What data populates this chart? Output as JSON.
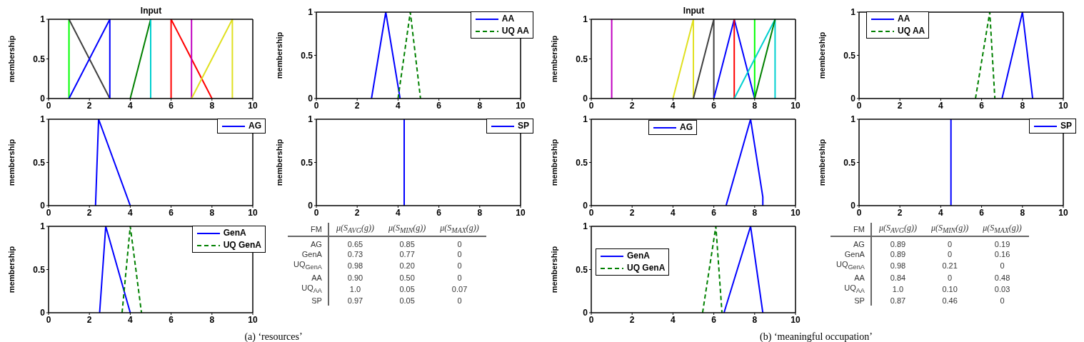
{
  "chart_data": [
    {
      "type": "line",
      "title": "Input",
      "ylabel": "membership",
      "xlim": [
        0,
        10
      ],
      "xticks": [
        0,
        2,
        4,
        6,
        8,
        10
      ],
      "ylim": [
        0,
        1
      ],
      "yticks": [
        0,
        0.5,
        1
      ],
      "line_style": "solid",
      "series": [
        {
          "color": "#00ff00",
          "x": [
            1,
            1
          ],
          "values": [
            0,
            1
          ]
        },
        {
          "color": "#404040",
          "x": [
            1,
            3
          ],
          "values": [
            1,
            0
          ]
        },
        {
          "color": "#0000ff",
          "x": [
            1,
            3,
            3
          ],
          "values": [
            0,
            1,
            0
          ]
        },
        {
          "color": "#008000",
          "x": [
            4,
            5
          ],
          "values": [
            0,
            1
          ]
        },
        {
          "color": "#00d0d0",
          "x": [
            5,
            5
          ],
          "values": [
            0,
            1
          ]
        },
        {
          "color": "#ff0000",
          "x": [
            6,
            6,
            8
          ],
          "values": [
            0,
            1,
            0
          ]
        },
        {
          "color": "#c000c0",
          "x": [
            7,
            7
          ],
          "values": [
            0,
            1
          ]
        },
        {
          "color": "#e0e020",
          "x": [
            7,
            9,
            9
          ],
          "values": [
            0,
            1,
            0
          ]
        }
      ]
    },
    {
      "type": "line",
      "ylabel": "membership",
      "xlim": [
        0,
        10
      ],
      "xticks": [
        0,
        2,
        4,
        6,
        8,
        10
      ],
      "ylim": [
        0,
        1
      ],
      "yticks": [
        0,
        0.5,
        1
      ],
      "legend": "top right",
      "line_style": "solid",
      "series": [
        {
          "name": "AA",
          "color": "#0000ff",
          "x": [
            2.7,
            3.4,
            4.1
          ],
          "values": [
            0,
            1,
            0
          ]
        },
        {
          "name": "UQ AA",
          "color": "#008000",
          "line_style": "dashed",
          "x": [
            4.0,
            4.6,
            5.1
          ],
          "values": [
            0,
            1,
            0
          ]
        }
      ]
    },
    {
      "type": "line",
      "ylabel": "membership",
      "xlim": [
        0,
        10
      ],
      "xticks": [
        0,
        2,
        4,
        6,
        8,
        10
      ],
      "ylim": [
        0,
        1
      ],
      "yticks": [
        0,
        0.5,
        1
      ],
      "legend": "top right",
      "line_style": "solid",
      "series": [
        {
          "name": "AG",
          "color": "#0000ff",
          "x": [
            2.3,
            2.45,
            4.0
          ],
          "values": [
            0,
            1,
            0
          ]
        }
      ]
    },
    {
      "type": "line",
      "ylabel": "membership",
      "xlim": [
        0,
        10
      ],
      "xticks": [
        0,
        2,
        4,
        6,
        8,
        10
      ],
      "ylim": [
        0,
        1
      ],
      "yticks": [
        0,
        0.5,
        1
      ],
      "legend": "top right",
      "line_style": "solid",
      "series": [
        {
          "name": "SP",
          "color": "#0000ff",
          "x": [
            4.3,
            4.3
          ],
          "values": [
            0,
            1
          ]
        }
      ]
    },
    {
      "type": "line",
      "ylabel": "membership",
      "xlim": [
        0,
        10
      ],
      "xticks": [
        0,
        2,
        4,
        6,
        8,
        10
      ],
      "ylim": [
        0,
        1
      ],
      "yticks": [
        0,
        0.5,
        1
      ],
      "legend": "top right",
      "line_style": "solid",
      "series": [
        {
          "name": "GenA",
          "color": "#0000ff",
          "x": [
            2.5,
            2.8,
            4.0
          ],
          "values": [
            0,
            1,
            0
          ]
        },
        {
          "name": "UQ GenA",
          "color": "#008000",
          "line_style": "dashed",
          "x": [
            3.6,
            4.0,
            4.55
          ],
          "values": [
            0,
            1,
            0
          ]
        }
      ]
    },
    {
      "type": "other",
      "annotations": [
        "FM",
        "μ(S$_{AVG}$(g))",
        "μ(S$_{MIN}$(g))",
        "μ(S$_{MAX}$(g))",
        "AG",
        "0.65",
        "0.85",
        "0",
        "GenA",
        "0.73",
        "0.77",
        "0",
        "UQ$_{GenA}$",
        "0.98",
        "0.20",
        "0",
        "AA",
        "0.90",
        "0.50",
        "0",
        "UQ$_{AA}$",
        "1.0",
        "0.05",
        "0.07",
        "SP",
        "0.97",
        "0.05",
        "0",
        "(a) ‘resources’"
      ]
    },
    {
      "type": "line",
      "title": "Input",
      "ylabel": "membership",
      "xlim": [
        0,
        10
      ],
      "xticks": [
        0,
        2,
        4,
        6,
        8,
        10
      ],
      "ylim": [
        0,
        1
      ],
      "yticks": [
        0,
        0.5,
        1
      ],
      "line_style": "solid",
      "series": [
        {
          "color": "#c000c0",
          "x": [
            1,
            1
          ],
          "values": [
            0,
            1
          ]
        },
        {
          "color": "#e0e020",
          "x": [
            4,
            5,
            5
          ],
          "values": [
            0,
            1,
            0
          ]
        },
        {
          "color": "#404040",
          "x": [
            5,
            6,
            6
          ],
          "values": [
            0,
            1,
            0
          ]
        },
        {
          "color": "#0000ff",
          "x": [
            6,
            7,
            8
          ],
          "values": [
            0,
            1,
            0
          ]
        },
        {
          "color": "#ff0000",
          "x": [
            7,
            7
          ],
          "values": [
            0,
            1
          ]
        },
        {
          "color": "#00ff00",
          "x": [
            8,
            8
          ],
          "values": [
            0,
            1
          ]
        },
        {
          "color": "#00d0d0",
          "x": [
            7,
            9,
            9
          ],
          "values": [
            0,
            1,
            0
          ]
        },
        {
          "color": "#008000",
          "x": [
            8,
            9
          ],
          "values": [
            0,
            1
          ]
        }
      ]
    },
    {
      "type": "line",
      "ylabel": "membership",
      "xlim": [
        0,
        10
      ],
      "xticks": [
        0,
        2,
        4,
        6,
        8,
        10
      ],
      "ylim": [
        0,
        1
      ],
      "yticks": [
        0,
        0.5,
        1
      ],
      "legend": "top left",
      "line_style": "solid",
      "series": [
        {
          "name": "AA",
          "color": "#0000ff",
          "x": [
            7.0,
            8.0,
            8.5
          ],
          "values": [
            0,
            1,
            0
          ]
        },
        {
          "name": "UQ AA",
          "color": "#008000",
          "line_style": "dashed",
          "x": [
            5.7,
            6.4,
            6.65
          ],
          "values": [
            0,
            1,
            0
          ]
        }
      ]
    },
    {
      "type": "line",
      "ylabel": "membership",
      "xlim": [
        0,
        10
      ],
      "xticks": [
        0,
        2,
        4,
        6,
        8,
        10
      ],
      "ylim": [
        0,
        1
      ],
      "yticks": [
        0,
        0.5,
        1
      ],
      "legend": "top",
      "line_style": "solid",
      "series": [
        {
          "name": "AG",
          "color": "#0000ff",
          "x": [
            6.6,
            7.8,
            8.4,
            8.4
          ],
          "values": [
            0,
            1,
            0.1,
            0
          ]
        }
      ]
    },
    {
      "type": "line",
      "ylabel": "membership",
      "xlim": [
        0,
        10
      ],
      "xticks": [
        0,
        2,
        4,
        6,
        8,
        10
      ],
      "ylim": [
        0,
        1
      ],
      "yticks": [
        0,
        0.5,
        1
      ],
      "legend": "top right",
      "line_style": "solid",
      "series": [
        {
          "name": "SP",
          "color": "#0000ff",
          "x": [
            4.5,
            4.5
          ],
          "values": [
            0,
            1
          ]
        }
      ]
    },
    {
      "type": "line",
      "ylabel": "membership",
      "xlim": [
        0,
        10
      ],
      "xticks": [
        0,
        2,
        4,
        6,
        8,
        10
      ],
      "ylim": [
        0,
        1
      ],
      "yticks": [
        0,
        0.5,
        1
      ],
      "legend": "left",
      "line_style": "solid",
      "series": [
        {
          "name": "GenA",
          "color": "#0000ff",
          "x": [
            6.5,
            7.8,
            8.4
          ],
          "values": [
            0,
            1,
            0
          ]
        },
        {
          "name": "UQ GenA",
          "color": "#008000",
          "line_style": "dashed",
          "x": [
            5.45,
            6.1,
            6.4
          ],
          "values": [
            0,
            1,
            0
          ]
        }
      ]
    },
    {
      "type": "other",
      "annotations": [
        "FM",
        "μ(S$_{AVG}$(g))",
        "μ(S$_{MIN}$(g))",
        "μ(S$_{MAX}$(g))",
        "AG",
        "0.89",
        "0",
        "0.19",
        "GenA",
        "0.89",
        "0",
        "0.16",
        "UQ$_{GenA}$",
        "0.98",
        "0.21",
        "0",
        "AA",
        "0.84",
        "0",
        "0.48",
        "UQ$_{AA}$",
        "1.0",
        "0.10",
        "0.03",
        "SP",
        "0.87",
        "0.46",
        "0",
        "(b) ‘meaningful occupation’"
      ]
    }
  ]
}
